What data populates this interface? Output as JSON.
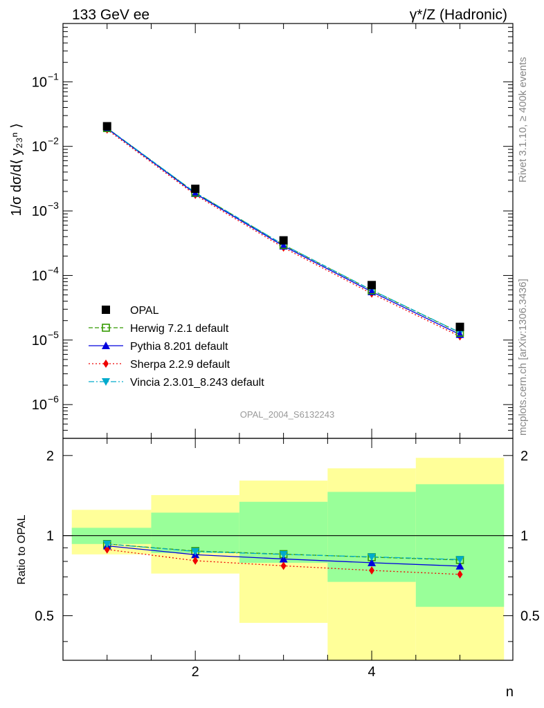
{
  "header": {
    "left_title": "133 GeV ee",
    "right_title": "γ*/Z (Hadronic)"
  },
  "side_labels": {
    "rivet": "Rivet 3.1.10, ≥ 400k events",
    "mcplots": "mcplots.cern.ch [arXiv:1306.3436]"
  },
  "analysis_id": "OPAL_2004_S6132243",
  "colors": {
    "opal": "#000000",
    "herwig": "#339900",
    "pythia": "#0000dd",
    "sherpa": "#ee0000",
    "vincia": "#00aacc",
    "band_inner": "#99ff99",
    "band_outer": "#ffff99"
  },
  "chart_data": [
    {
      "type": "line",
      "panel": "main",
      "ylabel": "1/σ dσ/d⟨ y₂₃ⁿ ⟩",
      "yscale": "log",
      "ylim": [
        3e-07,
        0.8
      ],
      "xlim": [
        0.5,
        5.6
      ],
      "yticks": [
        {
          "v": 1e-06,
          "exp": "−6"
        },
        {
          "v": 1e-05,
          "exp": "−5"
        },
        {
          "v": 0.0001,
          "exp": "−4"
        },
        {
          "v": 0.001,
          "exp": "−3"
        },
        {
          "v": 0.01,
          "exp": "−2"
        },
        {
          "v": 0.1,
          "exp": "−1"
        }
      ],
      "x": [
        1,
        2,
        3,
        4,
        5
      ],
      "legend_position": "lower-left",
      "series": [
        {
          "name": "OPAL",
          "key": "opal",
          "marker": "square",
          "values": [
            0.0205,
            0.0022,
            0.00035,
            7.1e-05,
            1.6e-05
          ]
        },
        {
          "name": "Herwig 7.2.1 default",
          "key": "herwig",
          "marker": "open-square",
          "dash": "6,3",
          "values": [
            0.0192,
            0.00192,
            0.000298,
            5.9e-05,
            1.3e-05
          ]
        },
        {
          "name": "Pythia 8.201 default",
          "key": "pythia",
          "marker": "triangle-up",
          "dash": "",
          "values": [
            0.019,
            0.00186,
            0.000286,
            5.6e-05,
            1.22e-05
          ]
        },
        {
          "name": "Sherpa 2.2.9 default",
          "key": "sherpa",
          "marker": "diamond",
          "dash": "2,3",
          "values": [
            0.0182,
            0.00177,
            0.00027,
            5.25e-05,
            1.14e-05
          ]
        },
        {
          "name": "Vincia 2.3.01_8.243 default",
          "key": "vincia",
          "marker": "triangle-down",
          "dash": "8,3,2,3",
          "values": [
            0.0193,
            0.00192,
            0.0003,
            5.95e-05,
            1.31e-05
          ]
        }
      ]
    },
    {
      "type": "line",
      "panel": "ratio",
      "ylabel": "Ratio to OPAL",
      "xlabel": "n",
      "ylim": [
        0.34,
        2.32
      ],
      "xlim": [
        0.5,
        5.6
      ],
      "xticks": [
        {
          "v": 2,
          "label": "2"
        },
        {
          "v": 4,
          "label": "4"
        }
      ],
      "yticks": [
        {
          "v": 0.5,
          "label": "0.5"
        },
        {
          "v": 1,
          "label": "1"
        },
        {
          "v": 2,
          "label": "2"
        }
      ],
      "bands": [
        {
          "x0": 0.6,
          "x1": 1.5,
          "inner": [
            0.93,
            1.07
          ],
          "outer": [
            0.85,
            1.25
          ]
        },
        {
          "x0": 1.5,
          "x1": 2.5,
          "inner": [
            0.86,
            1.22
          ],
          "outer": [
            0.72,
            1.42
          ]
        },
        {
          "x0": 2.5,
          "x1": 3.5,
          "inner": [
            0.79,
            1.34
          ],
          "outer": [
            0.47,
            1.61
          ]
        },
        {
          "x0": 3.5,
          "x1": 4.5,
          "inner": [
            0.67,
            1.46
          ],
          "outer": [
            0.34,
            1.79
          ]
        },
        {
          "x0": 4.5,
          "x1": 5.5,
          "inner": [
            0.54,
            1.56
          ],
          "outer": [
            0.34,
            1.96
          ]
        }
      ],
      "x": [
        1,
        2,
        3,
        4,
        5
      ],
      "series": [
        {
          "name": "Herwig 7.2.1 default",
          "key": "herwig",
          "marker": "open-square",
          "dash": "6,3",
          "values": [
            0.93,
            0.875,
            0.852,
            0.83,
            0.81
          ]
        },
        {
          "name": "Pythia 8.201 default",
          "key": "pythia",
          "marker": "triangle-up",
          "dash": "",
          "values": [
            0.915,
            0.848,
            0.817,
            0.791,
            0.768
          ]
        },
        {
          "name": "Sherpa 2.2.9 default",
          "key": "sherpa",
          "marker": "diamond",
          "dash": "2,3",
          "values": [
            0.887,
            0.805,
            0.77,
            0.74,
            0.715
          ]
        },
        {
          "name": "Vincia 2.3.01_8.243 default",
          "key": "vincia",
          "marker": "triangle-down",
          "dash": "8,3,2,3",
          "values": [
            0.93,
            0.872,
            0.85,
            0.832,
            0.813
          ]
        }
      ]
    }
  ]
}
